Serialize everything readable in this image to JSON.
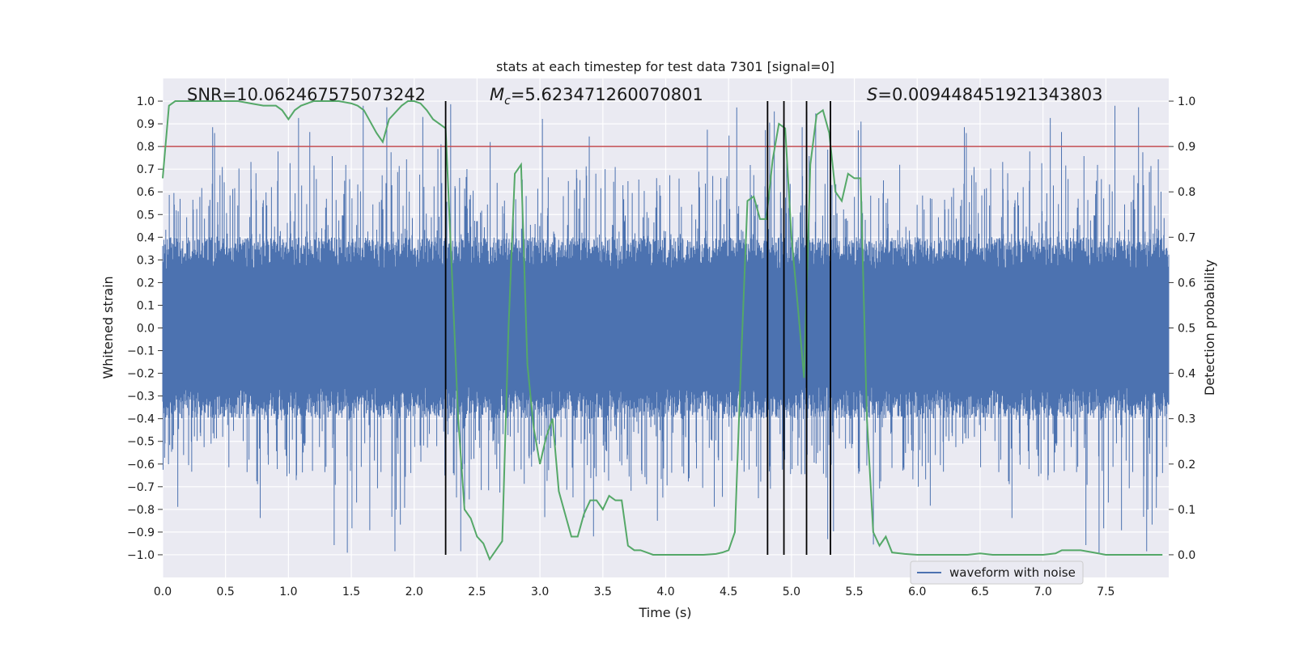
{
  "chart_data": {
    "type": "line",
    "title": "stats at each timestep for test data 7301 [signal=0]",
    "xlabel": "Time (s)",
    "ylabel": "Whitened strain",
    "y2label": "Detection probability",
    "xlim": [
      0.0,
      8.0
    ],
    "ylim": [
      -1.1,
      1.1
    ],
    "y2lim": [
      -0.05,
      1.05
    ],
    "grid": true,
    "xticks": [
      "0.0",
      "0.5",
      "1.0",
      "1.5",
      "2.0",
      "2.5",
      "3.0",
      "3.5",
      "4.0",
      "4.5",
      "5.0",
      "5.5",
      "6.0",
      "6.5",
      "7.0",
      "7.5"
    ],
    "yticks": [
      "1.0",
      "0.9",
      "0.8",
      "0.7",
      "0.6",
      "0.5",
      "0.4",
      "0.3",
      "0.2",
      "0.1",
      "0.0",
      "−0.1",
      "−0.2",
      "−0.3",
      "−0.4",
      "−0.5",
      "−0.6",
      "−0.7",
      "−0.8",
      "−0.9",
      "−1.0"
    ],
    "y2ticks": [
      "1.0",
      "0.9",
      "0.8",
      "0.7",
      "0.6",
      "0.5",
      "0.4",
      "0.3",
      "0.2",
      "0.1",
      "0.0"
    ],
    "annotations": {
      "snr": "SNR=10.062467575073242",
      "mc_symbol": "M",
      "mc_sub": "c",
      "mc_value": "=5.623471260070801",
      "s_symbol": "S",
      "s_value": "=0.009448451921343803"
    },
    "legend": {
      "label": "waveform with noise",
      "placement": "lower-right"
    },
    "threshold_line": {
      "y2": 0.9,
      "color": "#c44e52"
    },
    "vertical_lines_x": [
      2.25,
      4.81,
      4.94,
      5.12,
      5.31
    ],
    "series": [
      {
        "name": "waveform with noise",
        "axis": "left",
        "color": "#4c72b0",
        "description_hint": "dense noisy strain samples across 0–8 s, mostly within ±0.4 with spikes to ±1.0"
      },
      {
        "axis": "right",
        "color": "#55a868",
        "x": [
          0.0,
          0.05,
          0.1,
          0.2,
          0.3,
          0.4,
          0.5,
          0.6,
          0.7,
          0.8,
          0.9,
          0.95,
          1.0,
          1.05,
          1.1,
          1.2,
          1.3,
          1.4,
          1.5,
          1.55,
          1.6,
          1.7,
          1.75,
          1.8,
          1.9,
          1.95,
          2.0,
          2.05,
          2.1,
          2.15,
          2.2,
          2.25,
          2.3,
          2.35,
          2.4,
          2.45,
          2.5,
          2.55,
          2.6,
          2.65,
          2.7,
          2.75,
          2.8,
          2.85,
          2.9,
          2.95,
          3.0,
          3.05,
          3.1,
          3.15,
          3.2,
          3.25,
          3.3,
          3.35,
          3.4,
          3.45,
          3.5,
          3.55,
          3.6,
          3.65,
          3.7,
          3.75,
          3.8,
          3.9,
          4.0,
          4.1,
          4.2,
          4.3,
          4.4,
          4.45,
          4.5,
          4.55,
          4.6,
          4.65,
          4.7,
          4.75,
          4.8,
          4.85,
          4.9,
          4.95,
          5.0,
          5.05,
          5.1,
          5.15,
          5.2,
          5.25,
          5.3,
          5.35,
          5.4,
          5.45,
          5.5,
          5.55,
          5.6,
          5.65,
          5.7,
          5.75,
          5.8,
          5.9,
          6.0,
          6.2,
          6.4,
          6.5,
          6.6,
          6.8,
          7.0,
          7.1,
          7.15,
          7.2,
          7.25,
          7.3,
          7.4,
          7.5,
          7.6,
          7.7,
          7.8,
          7.95
        ],
        "y": [
          0.83,
          0.99,
          1.0,
          1.0,
          1.0,
          1.0,
          1.0,
          1.0,
          0.995,
          0.99,
          0.99,
          0.98,
          0.96,
          0.98,
          0.99,
          1.0,
          1.0,
          1.0,
          0.995,
          0.99,
          0.98,
          0.93,
          0.91,
          0.96,
          0.99,
          1.0,
          1.0,
          0.995,
          0.98,
          0.96,
          0.95,
          0.94,
          0.62,
          0.3,
          0.1,
          0.08,
          0.04,
          0.025,
          -0.01,
          0.01,
          0.03,
          0.5,
          0.84,
          0.86,
          0.42,
          0.28,
          0.2,
          0.26,
          0.3,
          0.14,
          0.09,
          0.04,
          0.04,
          0.09,
          0.12,
          0.12,
          0.1,
          0.13,
          0.12,
          0.12,
          0.02,
          0.01,
          0.01,
          0.0,
          0.0,
          0.0,
          0.0,
          0.0,
          0.002,
          0.005,
          0.01,
          0.05,
          0.43,
          0.78,
          0.79,
          0.74,
          0.74,
          0.87,
          0.95,
          0.94,
          0.7,
          0.55,
          0.39,
          0.86,
          0.97,
          0.98,
          0.93,
          0.8,
          0.78,
          0.84,
          0.83,
          0.83,
          0.3,
          0.05,
          0.02,
          0.04,
          0.005,
          0.002,
          0.0,
          0.0,
          0.0,
          0.003,
          0.0,
          0.0,
          0.0,
          0.003,
          0.01,
          0.01,
          0.01,
          0.01,
          0.005,
          0.0,
          0.0,
          0.0,
          0.0,
          0.0
        ]
      }
    ]
  }
}
